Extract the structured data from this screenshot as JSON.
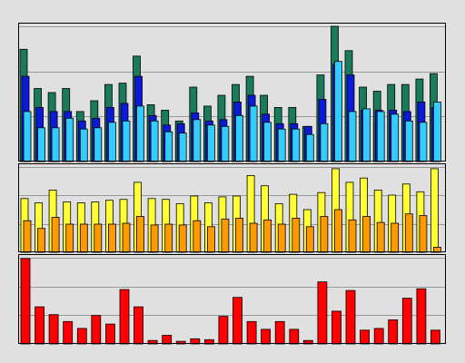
{
  "chart_data": [
    {
      "type": "bar",
      "stacked": false,
      "grid": true,
      "legend": "none",
      "ylim": [
        0,
        100
      ],
      "series": [
        {
          "color": "#1a7a5c",
          "values": [
            83,
            54,
            51,
            54,
            37,
            45,
            57,
            58,
            78,
            42,
            38,
            30,
            55,
            41,
            49,
            57,
            63,
            49,
            40,
            40,
            26,
            64,
            100,
            82,
            55,
            52,
            57,
            57,
            61,
            65
          ]
        },
        {
          "color": "#0a1ad8",
          "values": [
            63,
            40,
            37,
            37,
            30,
            32,
            40,
            43,
            63,
            34,
            27,
            28,
            36,
            30,
            31,
            44,
            49,
            35,
            28,
            28,
            26,
            46,
            72,
            64,
            38,
            38,
            38,
            37,
            44,
            40
          ]
        },
        {
          "color": "#33ccff",
          "values": [
            37,
            25,
            25,
            32,
            24,
            25,
            29,
            30,
            41,
            30,
            22,
            21,
            31,
            27,
            26,
            34,
            41,
            29,
            24,
            24,
            20,
            28,
            74,
            37,
            39,
            37,
            35,
            30,
            29,
            44
          ]
        }
      ]
    },
    {
      "type": "bar",
      "stacked": false,
      "grid": true,
      "legend": "none",
      "ylim": [
        0,
        100
      ],
      "series": [
        {
          "color": "#ffff33",
          "values": [
            63,
            58,
            73,
            59,
            58,
            59,
            61,
            62,
            82,
            63,
            62,
            57,
            66,
            58,
            65,
            66,
            90,
            78,
            57,
            68,
            50,
            70,
            98,
            82,
            87,
            73,
            67,
            80,
            71,
            98
          ]
        },
        {
          "color": "#ff9900",
          "values": [
            37,
            28,
            41,
            33,
            33,
            33,
            33,
            34,
            42,
            32,
            33,
            32,
            37,
            30,
            39,
            40,
            34,
            38,
            33,
            40,
            30,
            42,
            50,
            38,
            42,
            35,
            34,
            45,
            43,
            6
          ]
        }
      ]
    },
    {
      "type": "bar",
      "stacked": false,
      "grid": true,
      "legend": "none",
      "ylim": [
        0,
        100
      ],
      "series": [
        {
          "color": "#ff0000",
          "values": [
            99,
            43,
            34,
            26,
            18,
            33,
            23,
            63,
            43,
            4,
            10,
            3,
            6,
            5,
            32,
            54,
            26,
            17,
            26,
            17,
            4,
            72,
            38,
            62,
            16,
            18,
            28,
            53,
            64,
            16
          ]
        }
      ]
    }
  ]
}
